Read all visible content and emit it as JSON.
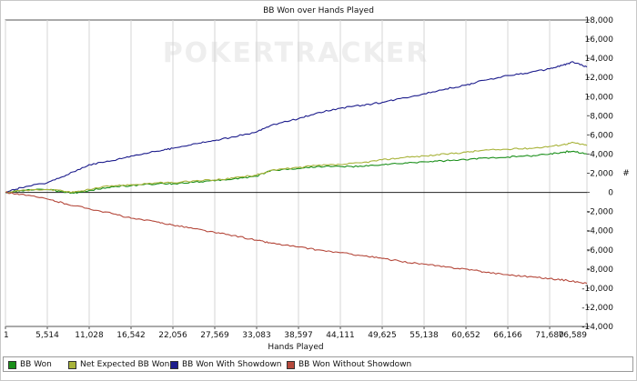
{
  "chart_data": {
    "type": "line",
    "title": "BB Won over Hands Played",
    "xlabel": "Hands Played",
    "ylabel": "#",
    "watermark": "POKERTRACKER",
    "xlim": [
      1,
      76589
    ],
    "ylim": [
      -14000,
      18000
    ],
    "x_ticks": [
      1,
      5514,
      11028,
      16542,
      22056,
      27569,
      33083,
      38597,
      44111,
      49625,
      55138,
      60652,
      66166,
      71680,
      76589
    ],
    "x_tick_labels": [
      "1",
      "5,514",
      "11,028",
      "16,542",
      "22,056",
      "27,569",
      "33,083",
      "38,597",
      "44,111",
      "49,625",
      "55,138",
      "60,652",
      "66,166",
      "71,680",
      "76,589"
    ],
    "y_ticks": [
      18000,
      16000,
      14000,
      12000,
      10000,
      8000,
      6000,
      4000,
      2000,
      0,
      -2000,
      -4000,
      -6000,
      -8000,
      -10000,
      -12000,
      -14000
    ],
    "y_tick_labels": [
      "18,000",
      "16,000",
      "14,000",
      "12,000",
      "10,000",
      "8,000",
      "6,000",
      "4,000",
      "2,000",
      "0",
      "-2,000",
      "-4,000",
      "-6,000",
      "-8,000",
      "-10,000",
      "-12,000",
      "-14,000"
    ],
    "grid": "vertical lines at x ticks; horizontal zero line",
    "legend_position": "bottom",
    "series": [
      {
        "name": "BB Won",
        "color": "#1a8f1a",
        "x": [
          1,
          2000,
          5514,
          8000,
          9000,
          11028,
          14000,
          16542,
          20000,
          22056,
          25000,
          27569,
          30000,
          33083,
          35000,
          38597,
          41000,
          44111,
          47000,
          49625,
          52000,
          55138,
          58000,
          60652,
          63000,
          66166,
          69000,
          71680,
          73500,
          74800,
          76589
        ],
        "y": [
          0,
          200,
          300,
          0,
          -100,
          200,
          600,
          700,
          900,
          900,
          1100,
          1200,
          1400,
          1700,
          2300,
          2500,
          2700,
          2700,
          2700,
          2900,
          3000,
          3200,
          3300,
          3400,
          3600,
          3700,
          3800,
          4000,
          4200,
          4300,
          4000
        ]
      },
      {
        "name": "Net Expected BB Won",
        "color": "#a8b33a",
        "x": [
          1,
          2000,
          5514,
          8000,
          9000,
          11028,
          14000,
          16542,
          20000,
          22056,
          25000,
          27569,
          30000,
          33083,
          35000,
          38597,
          41000,
          44111,
          47000,
          49625,
          52000,
          55138,
          58000,
          60652,
          63000,
          66166,
          69000,
          71680,
          73500,
          74800,
          76589
        ],
        "y": [
          0,
          200,
          300,
          100,
          0,
          300,
          700,
          800,
          1000,
          1000,
          1200,
          1300,
          1500,
          1800,
          2300,
          2600,
          2800,
          2900,
          3100,
          3400,
          3600,
          3800,
          4000,
          4200,
          4400,
          4500,
          4600,
          4800,
          5000,
          5200,
          4900
        ]
      },
      {
        "name": "BB Won With Showdown",
        "color": "#1c1c8c",
        "x": [
          1,
          2000,
          5514,
          8000,
          11028,
          14000,
          16542,
          20000,
          22056,
          25000,
          27569,
          30000,
          33083,
          35000,
          38597,
          41000,
          44111,
          47000,
          49625,
          52000,
          55138,
          58000,
          60652,
          63000,
          66166,
          69000,
          71680,
          73500,
          74800,
          76589
        ],
        "y": [
          0,
          500,
          1000,
          1800,
          2900,
          3300,
          3800,
          4300,
          4600,
          5100,
          5400,
          5800,
          6300,
          7000,
          7700,
          8300,
          8800,
          9100,
          9400,
          9800,
          10300,
          10800,
          11200,
          11700,
          12200,
          12500,
          12900,
          13300,
          13600,
          13100
        ]
      },
      {
        "name": "BB Won Without Showdown",
        "color": "#b5493c",
        "x": [
          1,
          2000,
          5514,
          8000,
          11028,
          14000,
          16542,
          20000,
          22056,
          25000,
          27569,
          30000,
          33083,
          35000,
          38597,
          41000,
          44111,
          47000,
          49625,
          52000,
          55138,
          58000,
          60652,
          63000,
          66166,
          69000,
          71680,
          74000,
          76589
        ],
        "y": [
          0,
          -200,
          -700,
          -1200,
          -1700,
          -2200,
          -2700,
          -3100,
          -3400,
          -3800,
          -4200,
          -4500,
          -5000,
          -5300,
          -5700,
          -6000,
          -6300,
          -6600,
          -6900,
          -7200,
          -7500,
          -7800,
          -8000,
          -8300,
          -8600,
          -8800,
          -9000,
          -9200,
          -9500
        ]
      }
    ]
  }
}
